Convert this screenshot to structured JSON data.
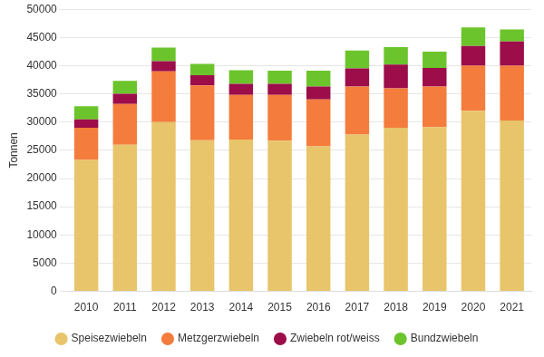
{
  "chart_data": {
    "type": "bar",
    "stacked": true,
    "grid": true,
    "legend": "bottom",
    "y_label": "Tonnen",
    "categories": [
      "2010",
      "2011",
      "2012",
      "2013",
      "2014",
      "2015",
      "2016",
      "2017",
      "2018",
      "2019",
      "2020",
      "2021"
    ],
    "series": [
      {
        "name": "Speisezwiebeln",
        "color": "#e8c46a",
        "values": [
          23300,
          26000,
          30000,
          26800,
          26900,
          26700,
          25700,
          27800,
          29000,
          29100,
          32000,
          30300
        ]
      },
      {
        "name": "Metzgerzwiebeln",
        "color": "#f47c3c",
        "values": [
          5700,
          7200,
          9000,
          9700,
          7900,
          8100,
          8300,
          8500,
          7000,
          7200,
          8000,
          9700
        ]
      },
      {
        "name": "Zwiebeln rot/weiss",
        "color": "#9c0d4a",
        "values": [
          1500,
          1800,
          1800,
          1800,
          2000,
          2000,
          2300,
          3200,
          4200,
          3300,
          3500,
          4300
        ]
      },
      {
        "name": "Bundzwiebeln",
        "color": "#6cc42c",
        "values": [
          2300,
          2300,
          2400,
          2000,
          2400,
          2300,
          2800,
          3200,
          3100,
          2900,
          3300,
          2100
        ]
      }
    ],
    "ylim": [
      0,
      50000
    ],
    "yticks": [
      0,
      5000,
      10000,
      15000,
      20000,
      25000,
      30000,
      35000,
      40000,
      45000,
      50000
    ]
  }
}
